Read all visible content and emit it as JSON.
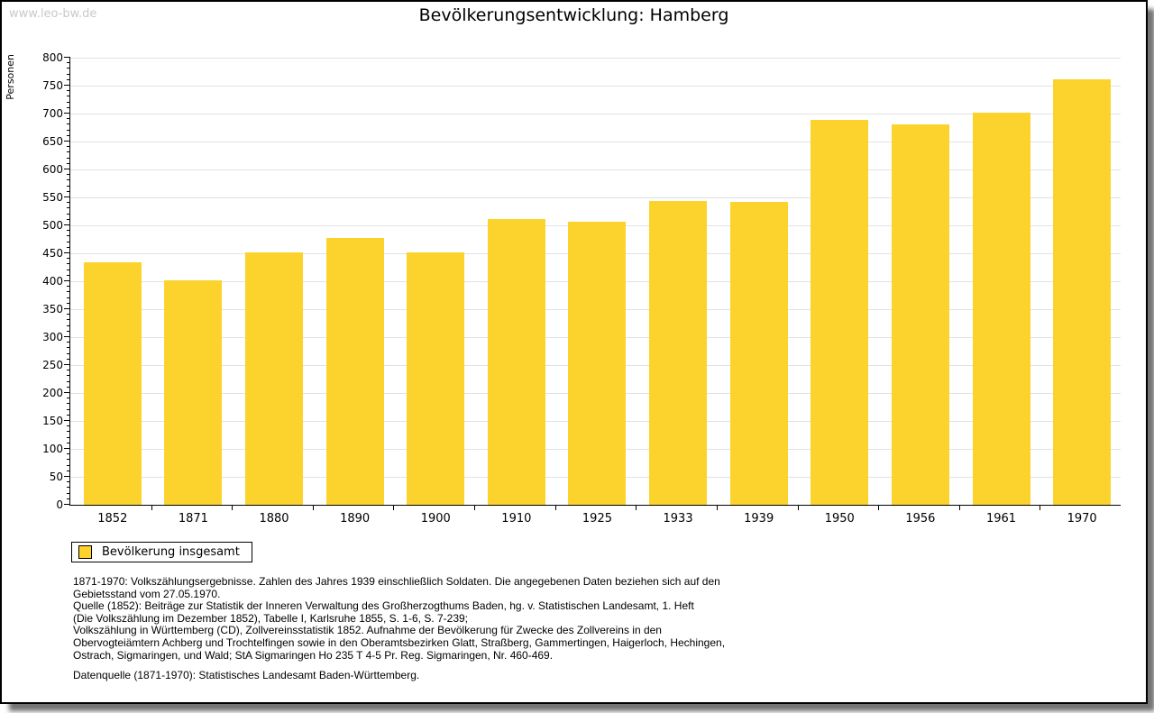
{
  "page": {
    "watermark": "www.leo-bw.de",
    "title": "Bevölkerungsentwicklung: Hamberg"
  },
  "chart_data": {
    "type": "bar",
    "title": "Bevölkerungsentwicklung: Hamberg",
    "xlabel": "",
    "ylabel": "Personen",
    "ylim": [
      0,
      800
    ],
    "ytick_step": 50,
    "y_minor_step": 10,
    "grid": true,
    "bar_color": "#FCD32C",
    "gridline_color": "#e2e2e2",
    "categories": [
      "1852",
      "1871",
      "1880",
      "1890",
      "1900",
      "1910",
      "1925",
      "1933",
      "1939",
      "1950",
      "1956",
      "1961",
      "1970"
    ],
    "values": [
      434,
      401,
      452,
      478,
      452,
      511,
      506,
      544,
      542,
      688,
      680,
      701,
      761
    ],
    "legend": {
      "label": "Bevölkerung insgesamt",
      "position": "bottom-left"
    }
  },
  "footer": {
    "lines": [
      "1871-1970: Volkszählungsergebnisse. Zahlen des Jahres 1939 einschließlich Soldaten. Die angegebenen Daten beziehen sich auf den",
      "Gebietsstand vom 27.05.1970.",
      "Quelle (1852): Beiträge zur Statistik der Inneren Verwaltung des Großherzogthums Baden, hg. v. Statistischen Landesamt, 1. Heft",
      "(Die Volkszählung im Dezember 1852), Tabelle I, Karlsruhe 1855, S. 1-6, S. 7-239;",
      "Volkszählung in Württemberg (CD), Zollvereinsstatistik 1852. Aufnahme der Bevölkerung für Zwecke des Zollvereins in den",
      "Obervogteiämtern Achberg und Trochtelfingen sowie in den Oberamtsbezirken Glatt, Straßberg, Gammertingen, Haigerloch, Hechingen,",
      "Ostrach, Sigmaringen, und Wald; StA Sigmaringen Ho 235 T 4-5 Pr. Reg. Sigmaringen, Nr. 460-469."
    ],
    "datasource": "Datenquelle (1871-1970): Statistisches Landesamt Baden-Württemberg."
  }
}
